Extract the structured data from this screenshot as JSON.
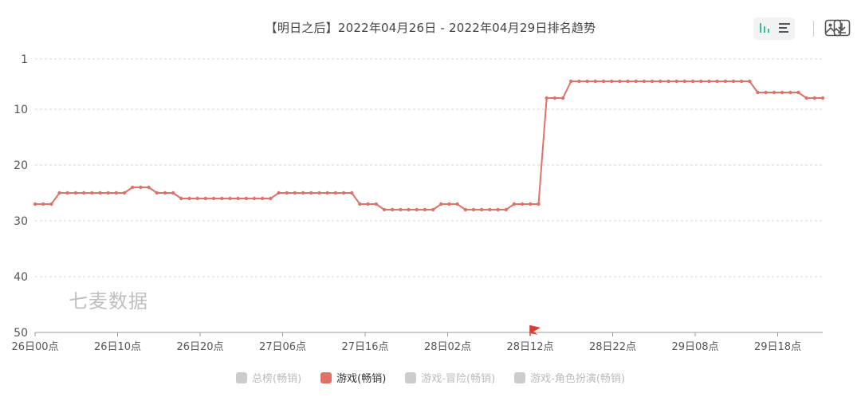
{
  "chart_data": {
    "type": "line",
    "title": "【明日之后】2022年04月26日 - 2022年04月29日排名趋势",
    "ylim": [
      1,
      50
    ],
    "y_inverted": true,
    "y_ticks": [
      "1",
      "10",
      "20",
      "30",
      "40",
      "50"
    ],
    "y_tick_values": [
      1,
      10,
      20,
      30,
      40,
      50
    ],
    "x_tick_labels": [
      "26日00点",
      "26日10点",
      "26日20点",
      "27日06点",
      "27日16点",
      "28日02点",
      "28日12点",
      "28日22点",
      "29日08点",
      "29日18点"
    ],
    "grid": true,
    "legend_position": "bottom",
    "series": [
      {
        "name": "游戏(畅销)",
        "color": "#e07166",
        "values": [
          27,
          27,
          27,
          25,
          25,
          25,
          25,
          25,
          25,
          25,
          25,
          25,
          24,
          24,
          24,
          25,
          25,
          25,
          26,
          26,
          26,
          26,
          26,
          26,
          26,
          26,
          26,
          26,
          26,
          26,
          25,
          25,
          25,
          25,
          25,
          25,
          25,
          25,
          25,
          25,
          27,
          27,
          27,
          28,
          28,
          28,
          28,
          28,
          28,
          28,
          27,
          27,
          27,
          28,
          28,
          28,
          28,
          28,
          28,
          27,
          27,
          27,
          27,
          8,
          8,
          8,
          5,
          5,
          5,
          5,
          5,
          5,
          5,
          5,
          5,
          5,
          5,
          5,
          5,
          5,
          5,
          5,
          5,
          5,
          5,
          5,
          5,
          5,
          5,
          7,
          7,
          7,
          7,
          7,
          7,
          8,
          8,
          8
        ]
      }
    ]
  },
  "legend": [
    {
      "label": "总榜(畅销)",
      "color": "#cccccc",
      "active": false
    },
    {
      "label": "游戏(畅销)",
      "color": "#e07166",
      "active": true
    },
    {
      "label": "游戏-冒险(畅销)",
      "color": "#cccccc",
      "active": false
    },
    {
      "label": "游戏-角色扮演(畅销)",
      "color": "#cccccc",
      "active": false
    }
  ],
  "watermark": "七麦数据",
  "toolbar": {
    "bar_icon": "bar-chart-icon",
    "list_icon": "horizontal-bars-icon",
    "image_icon": "save-image-icon",
    "download_icon": "download-icon"
  },
  "colors": {
    "accent": "#3fb8a0",
    "line": "#e07166",
    "grid": "#d6d6d6",
    "axis_text": "#555555",
    "flag": "#e03a2f"
  }
}
